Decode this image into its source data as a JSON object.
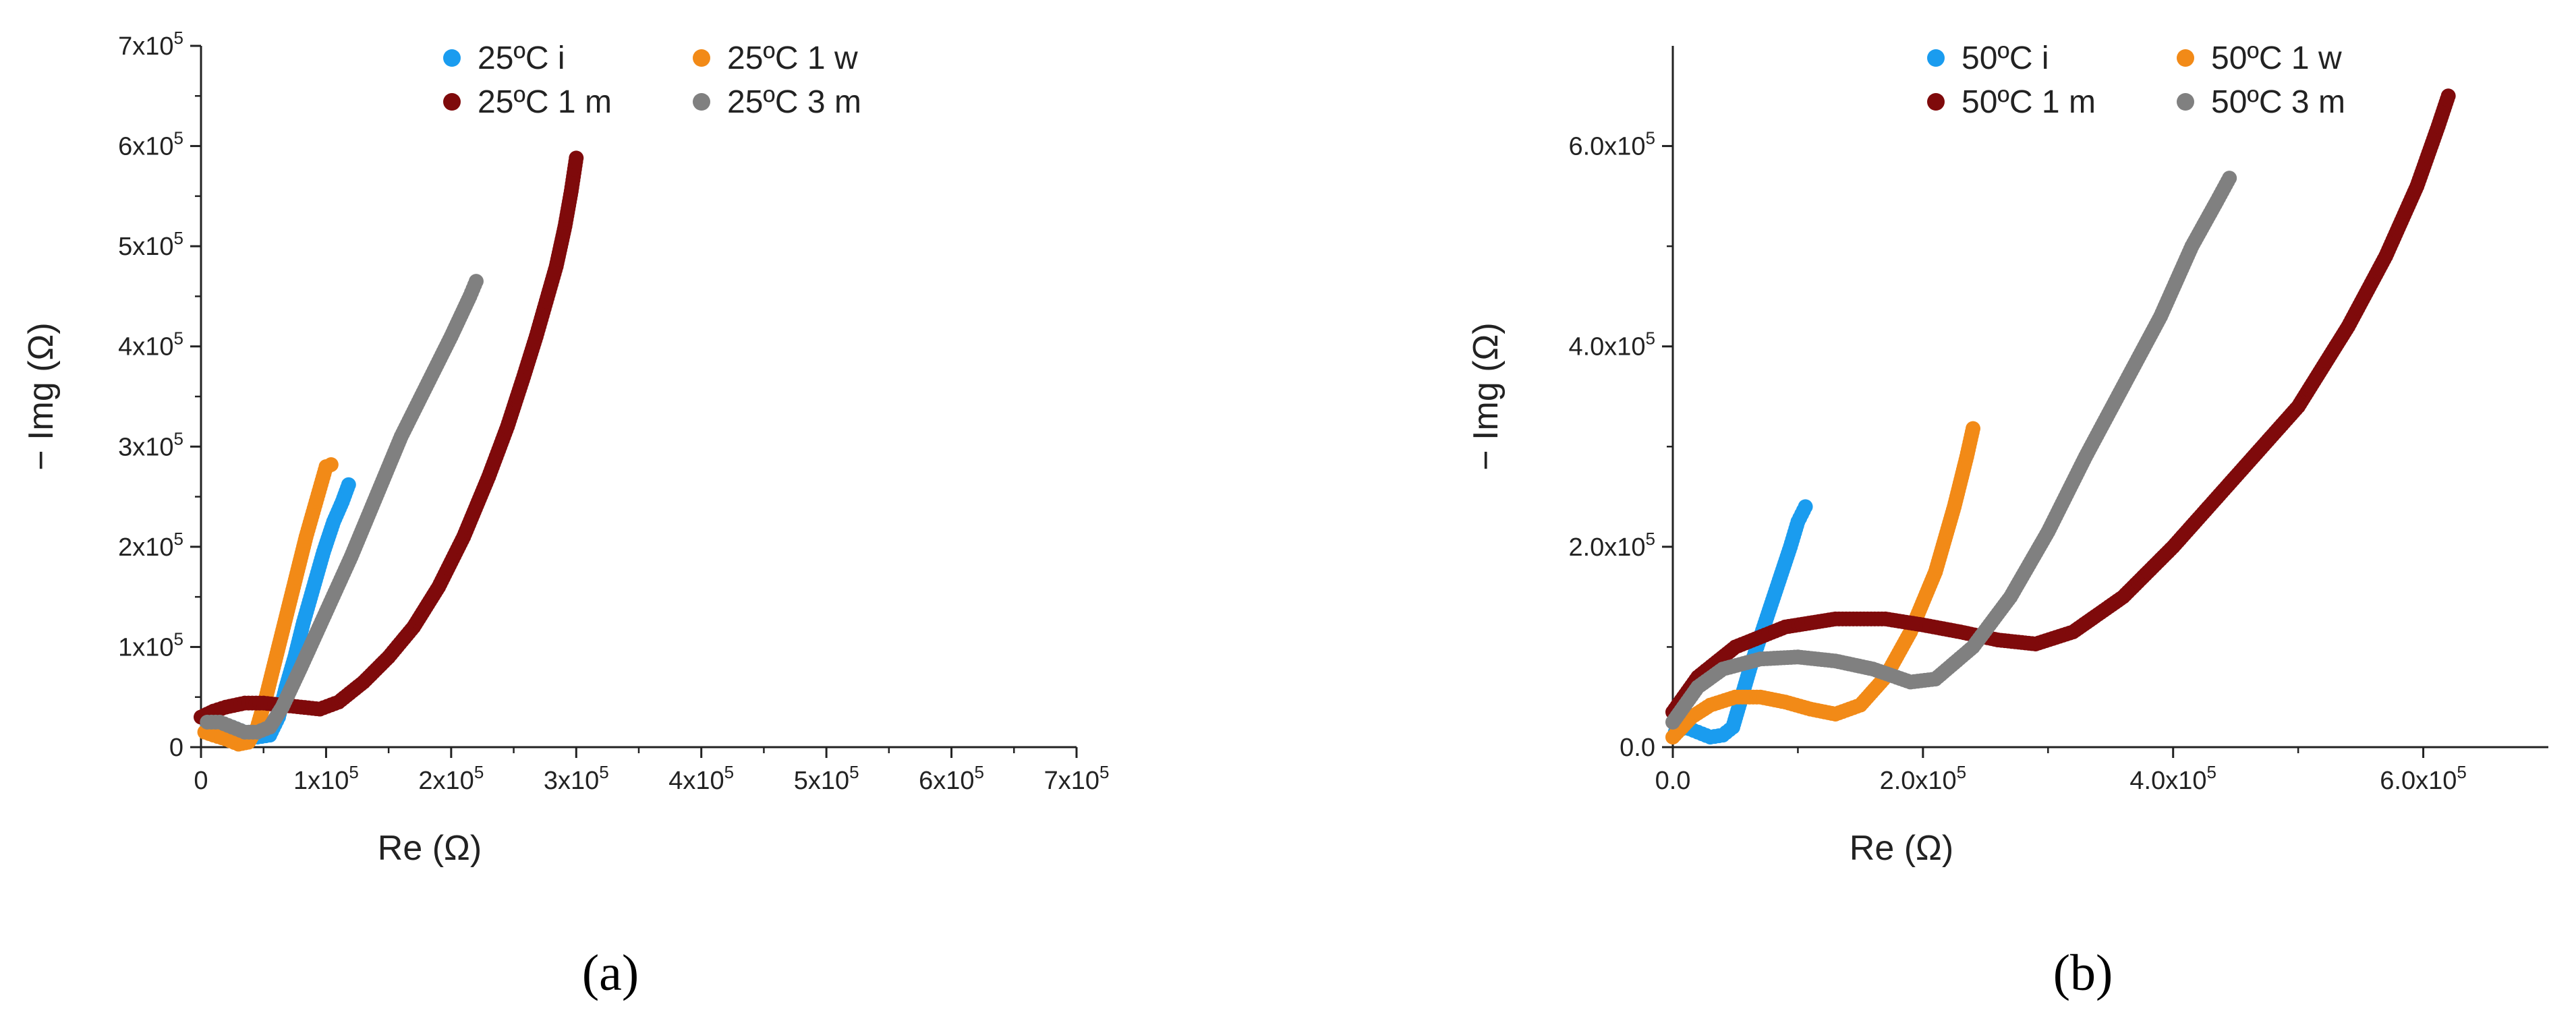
{
  "figure": {
    "panel_labels": [
      "(a)",
      "(b)"
    ]
  },
  "chart_data": [
    {
      "type": "scatter",
      "panel": "(a)",
      "title": "",
      "xlabel": "Re (Ω)",
      "ylabel": "− Img (Ω)",
      "xlim": [
        0,
        700000
      ],
      "ylim": [
        0,
        700000
      ],
      "tick_format": "sci",
      "x_ticks": [
        {
          "value": 0,
          "label": "0"
        },
        {
          "value": 100000,
          "label": "1x10",
          "sup": "5"
        },
        {
          "value": 200000,
          "label": "2x10",
          "sup": "5"
        },
        {
          "value": 300000,
          "label": "3x10",
          "sup": "5"
        },
        {
          "value": 400000,
          "label": "4x10",
          "sup": "5"
        },
        {
          "value": 500000,
          "label": "5x10",
          "sup": "5"
        },
        {
          "value": 600000,
          "label": "6x10",
          "sup": "5"
        },
        {
          "value": 700000,
          "label": "7x10",
          "sup": "5"
        }
      ],
      "y_ticks": [
        {
          "value": 0,
          "label": "0"
        },
        {
          "value": 100000,
          "label": "1x10",
          "sup": "5"
        },
        {
          "value": 200000,
          "label": "2x10",
          "sup": "5"
        },
        {
          "value": 300000,
          "label": "3x10",
          "sup": "5"
        },
        {
          "value": 400000,
          "label": "4x10",
          "sup": "5"
        },
        {
          "value": 500000,
          "label": "5x10",
          "sup": "5"
        },
        {
          "value": 600000,
          "label": "6x10",
          "sup": "5"
        },
        {
          "value": 700000,
          "label": "7x10",
          "sup": "5"
        }
      ],
      "legend": "top-center",
      "grid": false,
      "series": [
        {
          "name": "25ºC i",
          "color": "#1a9cef",
          "points": [
            [
              5000,
              20000
            ],
            [
              15000,
              22000
            ],
            [
              25000,
              20000
            ],
            [
              35000,
              15000
            ],
            [
              45000,
              10000
            ],
            [
              55000,
              12000
            ],
            [
              62000,
              30000
            ],
            [
              68000,
              60000
            ],
            [
              75000,
              90000
            ],
            [
              82000,
              125000
            ],
            [
              90000,
              160000
            ],
            [
              98000,
              195000
            ],
            [
              106000,
              225000
            ],
            [
              113000,
              245000
            ],
            [
              118000,
              262000
            ]
          ]
        },
        {
          "name": "25ºC 1 w",
          "color": "#f28a17",
          "points": [
            [
              3000,
              15000
            ],
            [
              10000,
              12000
            ],
            [
              20000,
              8000
            ],
            [
              30000,
              3000
            ],
            [
              38000,
              5000
            ],
            [
              45000,
              20000
            ],
            [
              52000,
              50000
            ],
            [
              60000,
              90000
            ],
            [
              68000,
              130000
            ],
            [
              76000,
              170000
            ],
            [
              84000,
              210000
            ],
            [
              92000,
              245000
            ],
            [
              100000,
              280000
            ],
            [
              104000,
              282000
            ]
          ]
        },
        {
          "name": "25ºC 1 m",
          "color": "#7f0a0b",
          "points": [
            [
              0,
              30000
            ],
            [
              10000,
              36000
            ],
            [
              20000,
              40000
            ],
            [
              35000,
              44000
            ],
            [
              50000,
              44000
            ],
            [
              65000,
              42000
            ],
            [
              80000,
              40000
            ],
            [
              95000,
              38000
            ],
            [
              110000,
              45000
            ],
            [
              130000,
              65000
            ],
            [
              150000,
              90000
            ],
            [
              170000,
              120000
            ],
            [
              190000,
              160000
            ],
            [
              210000,
              210000
            ],
            [
              230000,
              270000
            ],
            [
              245000,
              320000
            ],
            [
              258000,
              370000
            ],
            [
              268000,
              410000
            ],
            [
              276000,
              445000
            ],
            [
              284000,
              480000
            ],
            [
              291000,
              520000
            ],
            [
              296000,
              555000
            ],
            [
              300000,
              588000
            ]
          ]
        },
        {
          "name": "25ºC 3 m",
          "color": "#808080",
          "points": [
            [
              5000,
              25000
            ],
            [
              15000,
              25000
            ],
            [
              25000,
              20000
            ],
            [
              35000,
              15000
            ],
            [
              45000,
              15000
            ],
            [
              55000,
              20000
            ],
            [
              65000,
              40000
            ],
            [
              80000,
              80000
            ],
            [
              100000,
              135000
            ],
            [
              120000,
              190000
            ],
            [
              140000,
              250000
            ],
            [
              160000,
              310000
            ],
            [
              180000,
              360000
            ],
            [
              200000,
              410000
            ],
            [
              215000,
              450000
            ],
            [
              220000,
              465000
            ]
          ]
        }
      ]
    },
    {
      "type": "scatter",
      "panel": "(b)",
      "title": "",
      "xlabel": "Re (Ω)",
      "ylabel": "− Img (Ω)",
      "xlim": [
        0,
        700000
      ],
      "ylim": [
        0,
        700000
      ],
      "tick_format": "sci",
      "x_ticks": [
        {
          "value": 0,
          "label": "0.0"
        },
        {
          "value": 200000,
          "label": "2.0x10",
          "sup": "5"
        },
        {
          "value": 400000,
          "label": "4.0x10",
          "sup": "5"
        },
        {
          "value": 600000,
          "label": "6.0x10",
          "sup": "5"
        }
      ],
      "y_ticks": [
        {
          "value": 0,
          "label": "0.0"
        },
        {
          "value": 200000,
          "label": "2.0x10",
          "sup": "5"
        },
        {
          "value": 400000,
          "label": "4.0x10",
          "sup": "5"
        },
        {
          "value": 600000,
          "label": "6.0x10",
          "sup": "5"
        }
      ],
      "legend": "top-center",
      "grid": false,
      "series": [
        {
          "name": "50ºC i",
          "color": "#1a9cef",
          "points": [
            [
              2000,
              15000
            ],
            [
              10000,
              20000
            ],
            [
              20000,
              15000
            ],
            [
              30000,
              10000
            ],
            [
              40000,
              12000
            ],
            [
              48000,
              20000
            ],
            [
              55000,
              50000
            ],
            [
              62000,
              80000
            ],
            [
              70000,
              110000
            ],
            [
              78000,
              140000
            ],
            [
              86000,
              170000
            ],
            [
              94000,
              200000
            ],
            [
              100000,
              225000
            ],
            [
              106000,
              240000
            ]
          ]
        },
        {
          "name": "50ºC 1 w",
          "color": "#f28a17",
          "points": [
            [
              0,
              10000
            ],
            [
              15000,
              30000
            ],
            [
              30000,
              42000
            ],
            [
              50000,
              50000
            ],
            [
              70000,
              50000
            ],
            [
              90000,
              45000
            ],
            [
              110000,
              38000
            ],
            [
              130000,
              33000
            ],
            [
              150000,
              42000
            ],
            [
              170000,
              70000
            ],
            [
              190000,
              115000
            ],
            [
              210000,
              175000
            ],
            [
              225000,
              240000
            ],
            [
              235000,
              290000
            ],
            [
              240000,
              318000
            ]
          ]
        },
        {
          "name": "50ºC 1 m",
          "color": "#7f0a0b",
          "points": [
            [
              0,
              35000
            ],
            [
              20000,
              70000
            ],
            [
              50000,
              100000
            ],
            [
              90000,
              120000
            ],
            [
              130000,
              128000
            ],
            [
              170000,
              128000
            ],
            [
              200000,
              122000
            ],
            [
              230000,
              115000
            ],
            [
              260000,
              107000
            ],
            [
              290000,
              103000
            ],
            [
              320000,
              115000
            ],
            [
              360000,
              150000
            ],
            [
              400000,
              200000
            ],
            [
              450000,
              270000
            ],
            [
              500000,
              340000
            ],
            [
              540000,
              420000
            ],
            [
              570000,
              490000
            ],
            [
              595000,
              560000
            ],
            [
              612000,
              620000
            ],
            [
              620000,
              650000
            ]
          ]
        },
        {
          "name": "50ºC 3 m",
          "color": "#808080",
          "points": [
            [
              0,
              25000
            ],
            [
              20000,
              60000
            ],
            [
              40000,
              78000
            ],
            [
              70000,
              88000
            ],
            [
              100000,
              90000
            ],
            [
              130000,
              86000
            ],
            [
              160000,
              78000
            ],
            [
              190000,
              65000
            ],
            [
              210000,
              68000
            ],
            [
              240000,
              100000
            ],
            [
              270000,
              150000
            ],
            [
              300000,
              215000
            ],
            [
              330000,
              290000
            ],
            [
              360000,
              360000
            ],
            [
              390000,
              430000
            ],
            [
              415000,
              500000
            ],
            [
              435000,
              545000
            ],
            [
              445000,
              568000
            ]
          ]
        }
      ]
    }
  ]
}
